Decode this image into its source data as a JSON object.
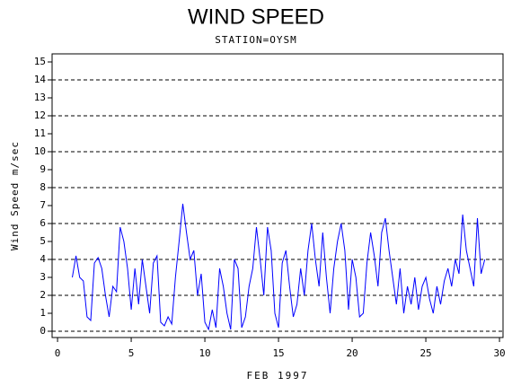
{
  "chart_data": {
    "type": "line",
    "title": "WIND SPEED",
    "subtitle": "STATION=OYSM",
    "x_label": "FEB 1997",
    "y_label": "Wind Speed m/sec",
    "color": "#0000ff",
    "grid": true,
    "xlim": [
      -0.37,
      30.24
    ],
    "xticks": [
      0,
      5,
      10,
      15,
      20,
      25,
      30
    ],
    "ylim": [
      -0.35,
      15.45
    ],
    "yticks": [
      0,
      1,
      2,
      3,
      4,
      5,
      6,
      7,
      8,
      9,
      10,
      11,
      12,
      13,
      14,
      15
    ],
    "grid_values": [
      0,
      2,
      4,
      6,
      8,
      10,
      12,
      14
    ],
    "x": [
      1,
      1.25,
      1.5,
      1.75,
      2,
      2.25,
      2.5,
      2.75,
      3,
      3.25,
      3.5,
      3.75,
      4,
      4.25,
      4.5,
      4.75,
      5,
      5.25,
      5.5,
      5.75,
      6,
      6.25,
      6.5,
      6.75,
      7,
      7.25,
      7.5,
      7.75,
      8,
      8.25,
      8.5,
      8.75,
      9,
      9.25,
      9.5,
      9.75,
      10,
      10.25,
      10.5,
      10.75,
      11,
      11.25,
      11.5,
      11.75,
      12,
      12.25,
      12.5,
      12.75,
      13,
      13.25,
      13.5,
      13.75,
      14,
      14.25,
      14.5,
      14.75,
      15,
      15.25,
      15.5,
      15.75,
      16,
      16.25,
      16.5,
      16.75,
      17,
      17.25,
      17.5,
      17.75,
      18,
      18.25,
      18.5,
      18.75,
      19,
      19.25,
      19.5,
      19.75,
      20,
      20.25,
      20.5,
      20.75,
      21,
      21.25,
      21.5,
      21.75,
      22,
      22.25,
      22.5,
      22.75,
      23,
      23.25,
      23.5,
      23.75,
      24,
      24.25,
      24.5,
      24.75,
      25,
      25.25,
      25.5,
      25.75,
      26,
      26.25,
      26.5,
      26.75,
      27,
      27.25,
      27.5,
      27.75,
      28,
      28.25,
      28.5,
      28.75,
      29
    ],
    "values": [
      3,
      4.2,
      3.0,
      2.8,
      0.8,
      0.6,
      3.8,
      4.1,
      3.5,
      2.0,
      0.8,
      2.5,
      2.2,
      5.8,
      5.0,
      3.5,
      1.2,
      3.5,
      1.5,
      4.0,
      2.5,
      1.0,
      3.8,
      4.2,
      0.5,
      0.3,
      0.8,
      0.4,
      3.0,
      5.0,
      7.1,
      5.5,
      4.0,
      4.5,
      2.0,
      3.2,
      0.5,
      0.1,
      1.2,
      0.2,
      3.5,
      2.5,
      1.0,
      0.1,
      4.0,
      3.5,
      0.2,
      0.8,
      2.5,
      3.5,
      5.8,
      4.0,
      2.0,
      5.8,
      4.5,
      1.0,
      0.2,
      3.8,
      4.5,
      2.5,
      0.8,
      1.5,
      3.5,
      2.0,
      4.5,
      6.0,
      4.0,
      2.5,
      5.5,
      3.0,
      1.0,
      3.5,
      5.0,
      6.0,
      4.5,
      1.2,
      4.0,
      3.0,
      0.8,
      1.0,
      3.8,
      5.5,
      4.2,
      2.5,
      5.5,
      6.3,
      4.5,
      3.0,
      1.5,
      3.5,
      1.0,
      2.5,
      1.5,
      3.0,
      1.2,
      2.5,
      3.0,
      1.8,
      1.0,
      2.5,
      1.5,
      2.8,
      3.5,
      2.5,
      4.0,
      3.2,
      6.5,
      4.5,
      3.5,
      2.5,
      6.3,
      3.2,
      4.0
    ]
  }
}
